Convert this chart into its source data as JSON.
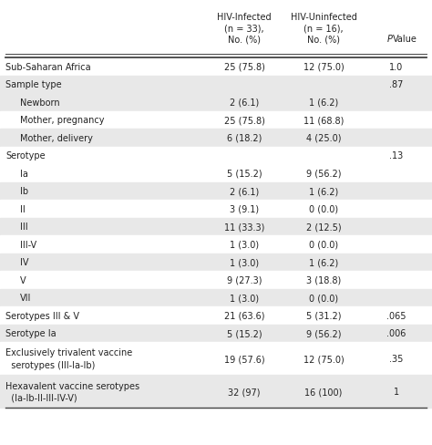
{
  "col_headers_line1": [
    "HIV-Infected",
    "HIV-Uninfected",
    ""
  ],
  "col_headers_line2": [
    "(n = 33),",
    "(n = 16),",
    ""
  ],
  "col_headers_line3": [
    "No. (%)",
    "No. (%)",
    "PValue"
  ],
  "rows": [
    {
      "label": "Sub-Saharan Africa",
      "indent": 0,
      "col1": "25 (75.8)",
      "col2": "12 (75.0)",
      "col3": "1.0",
      "bg": "white",
      "nlines": 1
    },
    {
      "label": "Sample type",
      "indent": 0,
      "col1": "",
      "col2": "",
      "col3": ".87",
      "bg": "#e8e8e8",
      "nlines": 1
    },
    {
      "label": "Newborn",
      "indent": 1,
      "col1": "2 (6.1)",
      "col2": "1 (6.2)",
      "col3": "",
      "bg": "#e8e8e8",
      "nlines": 1
    },
    {
      "label": "Mother, pregnancy",
      "indent": 1,
      "col1": "25 (75.8)",
      "col2": "11 (68.8)",
      "col3": "",
      "bg": "white",
      "nlines": 1
    },
    {
      "label": "Mother, delivery",
      "indent": 1,
      "col1": "6 (18.2)",
      "col2": "4 (25.0)",
      "col3": "",
      "bg": "#e8e8e8",
      "nlines": 1
    },
    {
      "label": "Serotype",
      "indent": 0,
      "col1": "",
      "col2": "",
      "col3": ".13",
      "bg": "white",
      "nlines": 1
    },
    {
      "label": "Ia",
      "indent": 1,
      "col1": "5 (15.2)",
      "col2": "9 (56.2)",
      "col3": "",
      "bg": "white",
      "nlines": 1
    },
    {
      "label": "Ib",
      "indent": 1,
      "col1": "2 (6.1)",
      "col2": "1 (6.2)",
      "col3": "",
      "bg": "#e8e8e8",
      "nlines": 1
    },
    {
      "label": "II",
      "indent": 1,
      "col1": "3 (9.1)",
      "col2": "0 (0.0)",
      "col3": "",
      "bg": "white",
      "nlines": 1
    },
    {
      "label": "III",
      "indent": 1,
      "col1": "11 (33.3)",
      "col2": "2 (12.5)",
      "col3": "",
      "bg": "#e8e8e8",
      "nlines": 1
    },
    {
      "label": "III-V",
      "indent": 1,
      "col1": "1 (3.0)",
      "col2": "0 (0.0)",
      "col3": "",
      "bg": "white",
      "nlines": 1
    },
    {
      "label": "IV",
      "indent": 1,
      "col1": "1 (3.0)",
      "col2": "1 (6.2)",
      "col3": "",
      "bg": "#e8e8e8",
      "nlines": 1
    },
    {
      "label": "V",
      "indent": 1,
      "col1": "9 (27.3)",
      "col2": "3 (18.8)",
      "col3": "",
      "bg": "white",
      "nlines": 1
    },
    {
      "label": "VII",
      "indent": 1,
      "col1": "1 (3.0)",
      "col2": "0 (0.0)",
      "col3": "",
      "bg": "#e8e8e8",
      "nlines": 1
    },
    {
      "label": "Serotypes III & V",
      "indent": 0,
      "col1": "21 (63.6)",
      "col2": "5 (31.2)",
      "col3": ".065",
      "bg": "white",
      "nlines": 1
    },
    {
      "label": "Serotype Ia",
      "indent": 0,
      "col1": "5 (15.2)",
      "col2": "9 (56.2)",
      "col3": ".006",
      "bg": "#e8e8e8",
      "nlines": 1
    },
    {
      "label": "Exclusively trivalent vaccine\n  serotypes (III-Ia-Ib)",
      "indent": 0,
      "col1": "19 (57.6)",
      "col2": "12 (75.0)",
      "col3": ".35",
      "bg": "white",
      "nlines": 2
    },
    {
      "label": "Hexavalent vaccine serotypes\n  (Ia-Ib-II-III-IV-V)",
      "indent": 0,
      "col1": "32 (97)",
      "col2": "16 (100)",
      "col3": "1",
      "bg": "#e8e8e8",
      "nlines": 2
    }
  ],
  "text_color": "#222222",
  "font_size": 7.0,
  "header_font_size": 7.0,
  "fig_width": 4.74,
  "fig_height": 4.89,
  "dpi": 100
}
